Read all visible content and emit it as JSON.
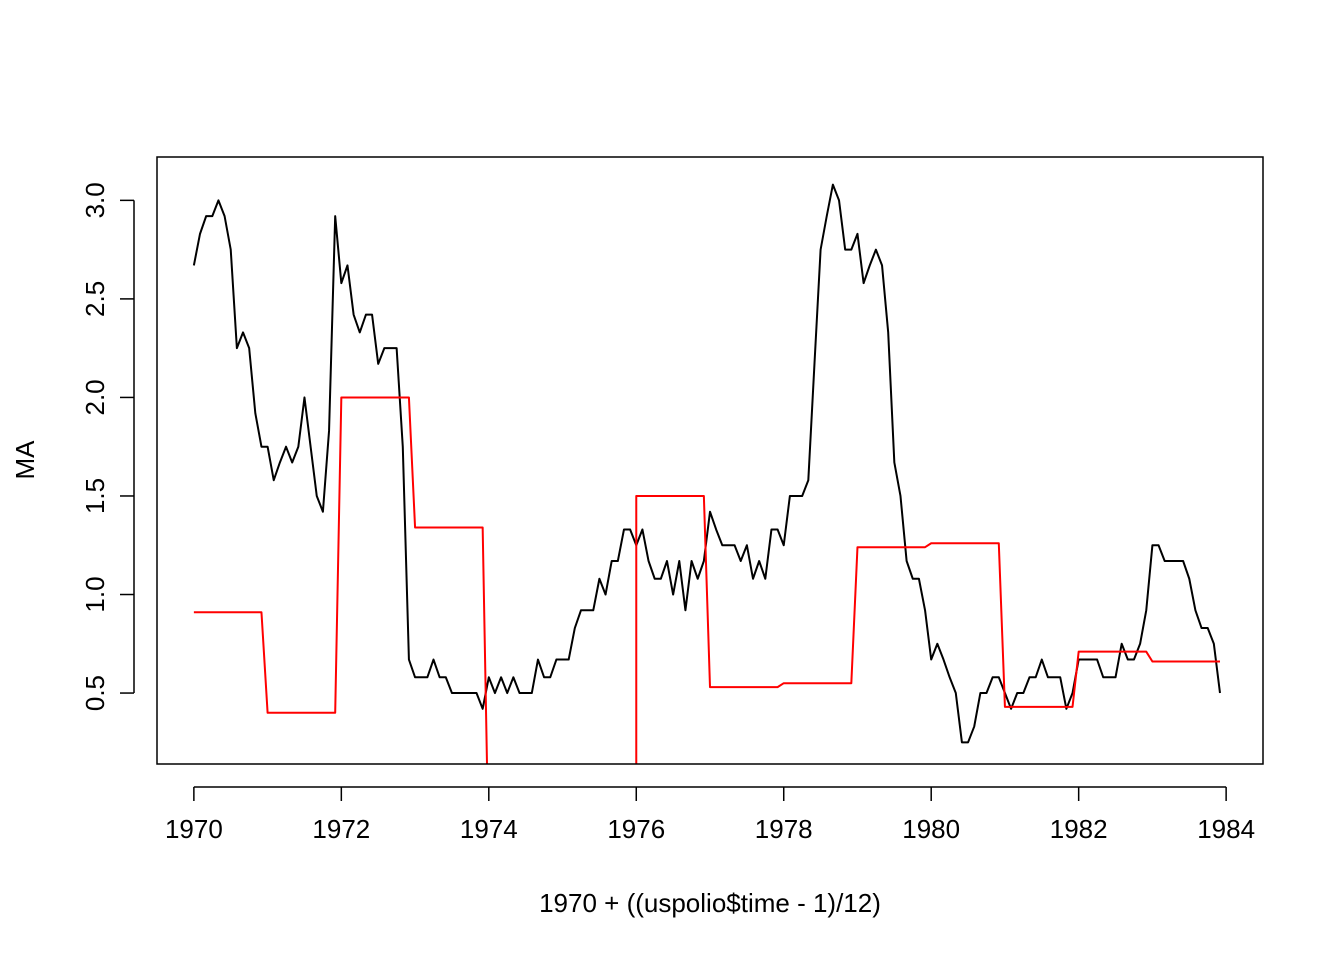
{
  "chart_data": {
    "type": "line",
    "title": "",
    "xlabel": "1970 + ((uspolio$time - 1)/12)",
    "ylabel": "MA",
    "xlim": [
      1969.5,
      1984.5
    ],
    "ylim": [
      0.14,
      3.22
    ],
    "x_ticks": [
      1970,
      1972,
      1974,
      1976,
      1978,
      1980,
      1982,
      1984
    ],
    "x_tick_labels": [
      "1970",
      "1972",
      "1974",
      "1976",
      "1978",
      "1980",
      "1982",
      "1984"
    ],
    "y_ticks": [
      0.5,
      1.0,
      1.5,
      2.0,
      2.5,
      3.0
    ],
    "y_tick_labels": [
      "0.5",
      "1.0",
      "1.5",
      "2.0",
      "2.5",
      "3.0"
    ],
    "grid": false,
    "x_start": 1970,
    "x_step": 0.0833333,
    "series": [
      {
        "color": "#000000",
        "values": [
          2.67,
          2.83,
          2.92,
          2.92,
          3.0,
          2.92,
          2.75,
          2.25,
          2.33,
          2.25,
          1.92,
          1.75,
          1.75,
          1.58,
          1.67,
          1.75,
          1.67,
          1.75,
          2.0,
          1.75,
          1.5,
          1.42,
          1.83,
          2.92,
          2.58,
          2.67,
          2.42,
          2.33,
          2.42,
          2.42,
          2.17,
          2.25,
          2.25,
          2.25,
          1.75,
          0.67,
          0.58,
          0.58,
          0.58,
          0.67,
          0.58,
          0.58,
          0.5,
          0.5,
          0.5,
          0.5,
          0.5,
          0.42,
          0.58,
          0.5,
          0.58,
          0.5,
          0.58,
          0.5,
          0.5,
          0.5,
          0.67,
          0.58,
          0.58,
          0.67,
          0.67,
          0.67,
          0.83,
          0.92,
          0.92,
          0.92,
          1.08,
          1.0,
          1.17,
          1.17,
          1.33,
          1.33,
          1.25,
          1.33,
          1.17,
          1.08,
          1.08,
          1.17,
          1.0,
          1.17,
          0.92,
          1.17,
          1.08,
          1.17,
          1.42,
          1.33,
          1.25,
          1.25,
          1.25,
          1.17,
          1.25,
          1.08,
          1.17,
          1.08,
          1.33,
          1.33,
          1.25,
          1.5,
          1.5,
          1.5,
          1.58,
          2.17,
          2.75,
          2.92,
          3.08,
          3.0,
          2.75,
          2.75,
          2.83,
          2.58,
          2.67,
          2.75,
          2.67,
          2.33,
          1.67,
          1.5,
          1.17,
          1.08,
          1.08,
          0.92,
          0.67,
          0.75,
          0.67,
          0.58,
          0.5,
          0.25,
          0.25,
          0.33,
          0.5,
          0.5,
          0.58,
          0.58,
          0.5,
          0.42,
          0.5,
          0.5,
          0.58,
          0.58,
          0.67,
          0.58,
          0.58,
          0.58,
          0.42,
          0.5,
          0.67,
          0.67,
          0.67,
          0.67,
          0.58,
          0.58,
          0.58,
          0.75,
          0.67,
          0.67,
          0.75,
          0.92,
          1.25,
          1.25,
          1.17,
          1.17,
          1.17,
          1.17,
          1.08,
          0.92,
          0.83,
          0.83,
          0.75,
          0.5
        ]
      },
      {
        "color": "#ff0000",
        "values": [
          0.91,
          0.91,
          0.91,
          0.91,
          0.91,
          0.91,
          0.91,
          0.91,
          0.91,
          0.91,
          0.91,
          0.91,
          0.4,
          0.4,
          0.4,
          0.4,
          0.4,
          0.4,
          0.4,
          0.4,
          0.4,
          0.4,
          0.4,
          0.4,
          2.0,
          2.0,
          2.0,
          2.0,
          2.0,
          2.0,
          2.0,
          2.0,
          2.0,
          2.0,
          2.0,
          2.0,
          1.34,
          1.34,
          1.34,
          1.34,
          1.34,
          1.34,
          1.34,
          1.34,
          1.34,
          1.34,
          1.34,
          1.34,
          null,
          null,
          null,
          null,
          null,
          null,
          null,
          null,
          null,
          null,
          null,
          null,
          null,
          null,
          null,
          null,
          null,
          null,
          null,
          null,
          null,
          null,
          null,
          null,
          1.5,
          1.5,
          1.5,
          1.5,
          1.5,
          1.5,
          1.5,
          1.5,
          1.5,
          1.5,
          1.5,
          1.5,
          0.53,
          0.53,
          0.53,
          0.53,
          0.53,
          0.53,
          0.53,
          0.53,
          0.53,
          0.53,
          0.53,
          0.53,
          0.55,
          0.55,
          0.55,
          0.55,
          0.55,
          0.55,
          0.55,
          0.55,
          0.55,
          0.55,
          0.55,
          0.55,
          1.24,
          1.24,
          1.24,
          1.24,
          1.24,
          1.24,
          1.24,
          1.24,
          1.24,
          1.24,
          1.24,
          1.24,
          1.26,
          1.26,
          1.26,
          1.26,
          1.26,
          1.26,
          1.26,
          1.26,
          1.26,
          1.26,
          1.26,
          1.26,
          0.43,
          0.43,
          0.43,
          0.43,
          0.43,
          0.43,
          0.43,
          0.43,
          0.43,
          0.43,
          0.43,
          0.43,
          0.71,
          0.71,
          0.71,
          0.71,
          0.71,
          0.71,
          0.71,
          0.71,
          0.71,
          0.71,
          0.71,
          0.71,
          0.66,
          0.66,
          0.66,
          0.66,
          0.66,
          0.66,
          0.66,
          0.66,
          0.66,
          0.66,
          0.66,
          0.66
        ]
      }
    ]
  }
}
